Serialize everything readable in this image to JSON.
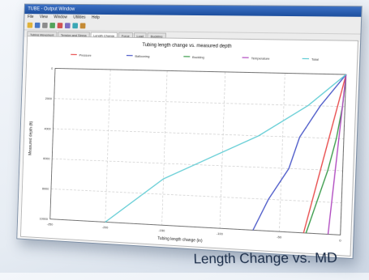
{
  "window": {
    "title": "TUBE - Output Window",
    "menu": [
      "File",
      "View",
      "Window",
      "Utilities",
      "Help"
    ],
    "toolbar_icons": [
      "open-icon",
      "save-icon",
      "print-icon",
      "copy-icon",
      "chart-icon",
      "table-icon",
      "zoom-icon",
      "help-icon"
    ],
    "tabs": [
      "Tubing Movement",
      "Tension and Stress",
      "Length Change",
      "Force",
      "Load",
      "Buckling"
    ],
    "active_tab_index": 2
  },
  "caption": {
    "text": "Length Change vs. MD"
  },
  "chart_data": {
    "type": "line",
    "title": "Tubing length change vs. measured depth",
    "xlabel": "Tubing length change (in)",
    "ylabel": "Measured depth (ft)",
    "xlim": [
      -250,
      0
    ],
    "ylim": [
      10000,
      0
    ],
    "x_ticks": [
      -250,
      -200,
      -150,
      -100,
      -50,
      0
    ],
    "y_ticks": [
      0,
      2000,
      4000,
      6000,
      8000,
      10000
    ],
    "grid": true,
    "legend_position": "top",
    "series": [
      {
        "name": "Pressure",
        "color": "#e84b4b",
        "points": [
          [
            -30,
            10000
          ],
          [
            -24,
            8000
          ],
          [
            -18,
            6000
          ],
          [
            -12,
            4000
          ],
          [
            -6,
            2000
          ],
          [
            0,
            0
          ]
        ]
      },
      {
        "name": "Ballooning",
        "color": "#4a58c8",
        "points": [
          [
            -72,
            10000
          ],
          [
            -60,
            8000
          ],
          [
            -44,
            6000
          ],
          [
            -36,
            4000
          ],
          [
            -20,
            2000
          ],
          [
            0,
            0
          ]
        ]
      },
      {
        "name": "Buckling",
        "color": "#3a9b4a",
        "points": [
          [
            -28,
            10000
          ],
          [
            -20,
            8000
          ],
          [
            -12,
            6000
          ],
          [
            -6,
            4000
          ],
          [
            -2,
            2000
          ],
          [
            0,
            0
          ]
        ]
      },
      {
        "name": "Temperature",
        "color": "#b04ac0",
        "points": [
          [
            -10,
            10000
          ],
          [
            -8,
            8000
          ],
          [
            -6,
            6000
          ],
          [
            -4,
            4000
          ],
          [
            -2,
            2000
          ],
          [
            0,
            0
          ]
        ]
      },
      {
        "name": "Total",
        "color": "#63cdd5",
        "points": [
          [
            -200,
            10000
          ],
          [
            -150,
            7000
          ],
          [
            -110,
            5500
          ],
          [
            -70,
            4000
          ],
          [
            -30,
            2000
          ],
          [
            0,
            0
          ]
        ]
      }
    ]
  }
}
